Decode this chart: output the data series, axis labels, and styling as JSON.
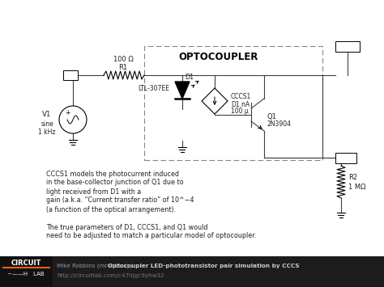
{
  "bg_color": "#ffffff",
  "footer_bg": "#1c1c1c",
  "footer_text_normal": "Mike Robbins (mrobbins) / ",
  "footer_text_bold": "Optocoupler LED-phototransistor pair simulation by CCCS",
  "footer_url": "http://circuitlab.com/c47hjgc9yhw32",
  "annotation_lines": [
    "CCCS1 models the photocurrent induced",
    "in the base-collector junction of Q1 due to",
    "light received from D1 with a",
    "gain (a.k.a. “Current transfer ratio” of 10^−4",
    "(a function of the optical arrangement).",
    "",
    "The true parameters of D1, CCCS1, and Q1 would",
    "need to be adjusted to match a particular model of optocoupler."
  ],
  "line_color": "#404040",
  "label_color": "#222222"
}
